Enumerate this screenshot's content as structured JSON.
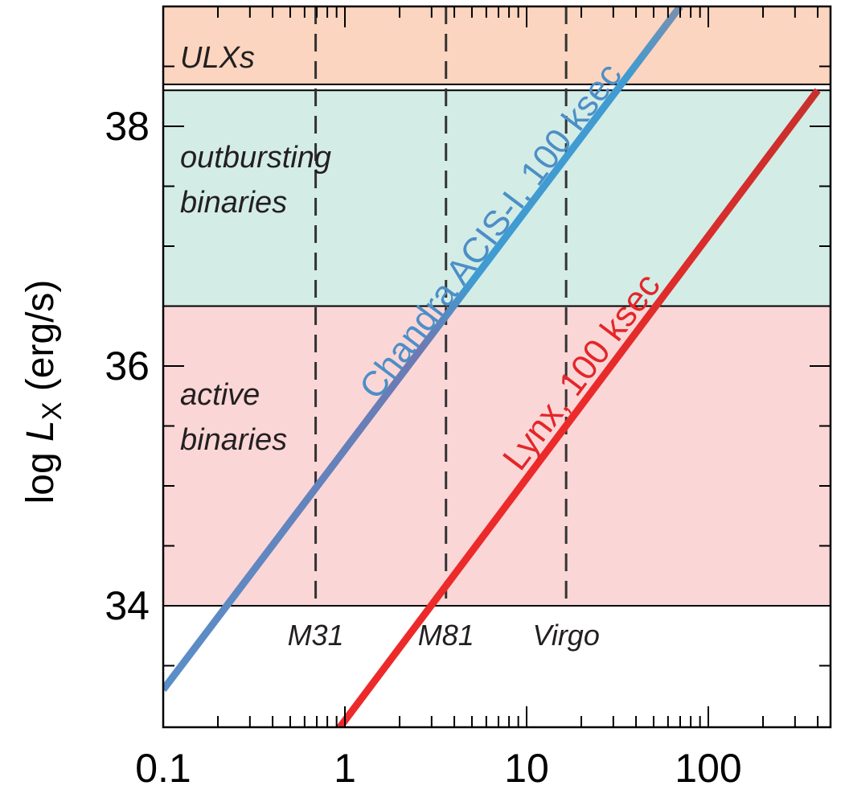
{
  "chart_data": {
    "type": "line",
    "xscale": "log",
    "xlim": [
      0.1,
      450
    ],
    "ylim": [
      32.95,
      39.0
    ],
    "x_tick_labels": [
      "0.1",
      "1",
      "10",
      "100"
    ],
    "x_tick_values": [
      0.1,
      1,
      10,
      100
    ],
    "y_tick_labels": [
      "34",
      "36",
      "38"
    ],
    "y_tick_values": [
      34,
      36,
      38
    ],
    "ylabel_prefix": "log ",
    "ylabel_var": "L",
    "ylabel_sub": "X",
    "ylabel_unit": " (erg/s)",
    "xlabel": "",
    "regions": [
      {
        "name": "ULXs",
        "lines": [
          "ULXs"
        ],
        "y_range": [
          38.35,
          39.0
        ],
        "color": "#fbd5bf"
      },
      {
        "name": "outbursting binaries",
        "lines": [
          "outbursting",
          "binaries"
        ],
        "y_range": [
          36.5,
          38.3
        ],
        "color": "#d3ece6"
      },
      {
        "name": "active binaries",
        "lines": [
          "active",
          "binaries"
        ],
        "y_range": [
          34.0,
          36.5
        ],
        "color": "#fbd6d7"
      }
    ],
    "markers": [
      {
        "label": "M31",
        "x": 0.69
      },
      {
        "label": "M81",
        "x": 3.6
      },
      {
        "label": "Virgo",
        "x": 16.5
      }
    ],
    "series": [
      {
        "name": "Chandra ACIS-I, 100 ksec",
        "x": [
          0.1,
          70
        ],
        "y": [
          33.3,
          39.0
        ],
        "color_start": "#5a8fc8",
        "color_mid": "#6b7ab3",
        "color_end": "#3f9bd1"
      },
      {
        "name": "Lynx, 100 ksec",
        "x": [
          0.9,
          400
        ],
        "y": [
          32.95,
          38.3
        ],
        "color_start": "#ec2a2a",
        "color_end": "#c8302d"
      }
    ]
  }
}
